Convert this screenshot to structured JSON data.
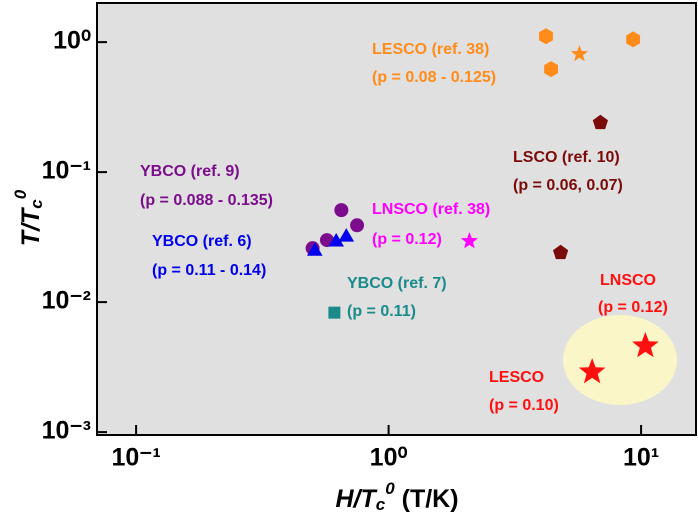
{
  "chart_data": {
    "type": "scatter",
    "xlog": true,
    "ylog": true,
    "xlim": [
      0.07,
      16.5
    ],
    "ylim": [
      0.00095,
      2.0
    ],
    "xticks": [
      {
        "value": 0.1,
        "label": "10⁻¹"
      },
      {
        "value": 1,
        "label": "10⁰"
      },
      {
        "value": 10,
        "label": "10¹"
      }
    ],
    "yticks": [
      {
        "value": 0.001,
        "label": "10⁻³"
      },
      {
        "value": 0.01,
        "label": "10⁻²"
      },
      {
        "value": 0.1,
        "label": "10⁻¹"
      },
      {
        "value": 1,
        "label": "10⁰"
      }
    ],
    "xlabel": [
      "H/T",
      "c",
      "0",
      " (T/K)"
    ],
    "ylabel": [
      "T/T",
      "c",
      "0"
    ],
    "background": "#e0e0e0",
    "series": [
      {
        "color": "#ff8c1a",
        "marker": "hexagon",
        "x": [
          4.2,
          4.4,
          9.3
        ],
        "values": [
          1.11,
          0.62,
          1.05
        ]
      },
      {
        "color": "#ff8c1a",
        "marker": "star",
        "x": [
          5.7
        ],
        "values": [
          0.81
        ]
      },
      {
        "color": "#7b0a0a",
        "marker": "pentagon",
        "x": [
          6.9,
          4.8
        ],
        "values": [
          0.24,
          0.024
        ]
      },
      {
        "color": "#ff00ff",
        "marker": "star",
        "x": [
          2.09
        ],
        "values": [
          0.0295
        ]
      },
      {
        "color": "#7b0d8c",
        "marker": "circle",
        "x": [
          0.5,
          0.57,
          0.65,
          0.75
        ],
        "values": [
          0.026,
          0.03,
          0.051,
          0.039
        ]
      },
      {
        "color": "#0000ee",
        "marker": "triangle",
        "x": [
          0.51,
          0.62,
          0.68
        ],
        "values": [
          0.0246,
          0.029,
          0.0316
        ]
      },
      {
        "color": "#1a8a8a",
        "marker": "square",
        "x": [
          0.61
        ],
        "values": [
          0.0083
        ]
      },
      {
        "color": "#ff1010",
        "marker": "bigstar",
        "x": [
          6.4,
          10.4
        ],
        "values": [
          0.0029,
          0.0046
        ]
      }
    ],
    "annotations": [
      {
        "text": "LESCO (ref. 38)",
        "color": "#ff8c1a"
      },
      {
        "text": "(p = 0.08 - 0.125)",
        "color": "#ff8c1a"
      },
      {
        "text": "LSCO (ref. 10)",
        "color": "#7b0a0a"
      },
      {
        "text": "(p = 0.06, 0.07)",
        "color": "#7b0a0a"
      },
      {
        "text": "YBCO (ref. 9)",
        "color": "#7b0d8c"
      },
      {
        "text": "(p = 0.088 - 0.135)",
        "color": "#7b0d8c"
      },
      {
        "text": "LNSCO (ref. 38)",
        "color": "#ff00ff"
      },
      {
        "text": "(p = 0.12)",
        "color": "#ff00ff"
      },
      {
        "text": "YBCO (ref. 6)",
        "color": "#0000ee"
      },
      {
        "text": "(p = 0.11 - 0.14)",
        "color": "#0000ee"
      },
      {
        "text": "YBCO (ref. 7)",
        "color": "#1a8a8a"
      },
      {
        "text": "(p = 0.11)",
        "color": "#1a8a8a"
      },
      {
        "text": "LNSCO",
        "color": "#ff1010"
      },
      {
        "text": "(p = 0.12)",
        "color": "#ff1010"
      },
      {
        "text": "LESCO",
        "color": "#ff1010"
      },
      {
        "text": "(p = 0.10)",
        "color": "#ff1010"
      }
    ]
  }
}
